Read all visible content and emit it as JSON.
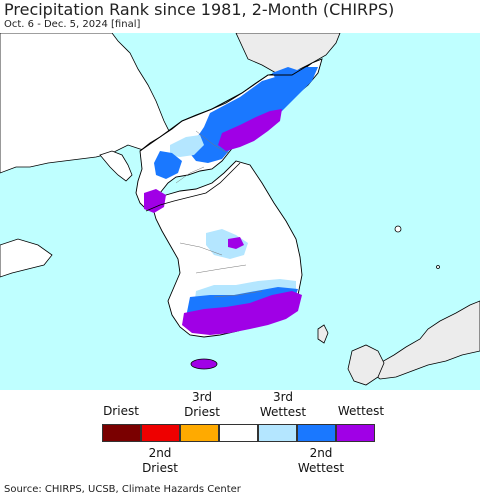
{
  "title": "Precipitation Rank since 1981, 2-Month (CHIRPS)",
  "subtitle": "Oct. 6 - Dec. 5, 2024 [final]",
  "legend": {
    "top_labels": [
      "Driest",
      "3rd\nDriest",
      "3rd\nWettest",
      "Wettest"
    ],
    "bottom_labels": [
      "2nd\nDriest",
      "2nd\nWettest"
    ],
    "colors": [
      "#7a0000",
      "#ee0000",
      "#ffaa00",
      "#ffffff",
      "#b4e6ff",
      "#1a78ff",
      "#a000e6"
    ]
  },
  "source": "Source: CHIRPS, UCSB, Climate Hazards Center",
  "map": {
    "ocean_color": "#bfffff",
    "land_color": "#ffffff",
    "foreign_land_color": "#ececec",
    "border_color": "#000000"
  }
}
